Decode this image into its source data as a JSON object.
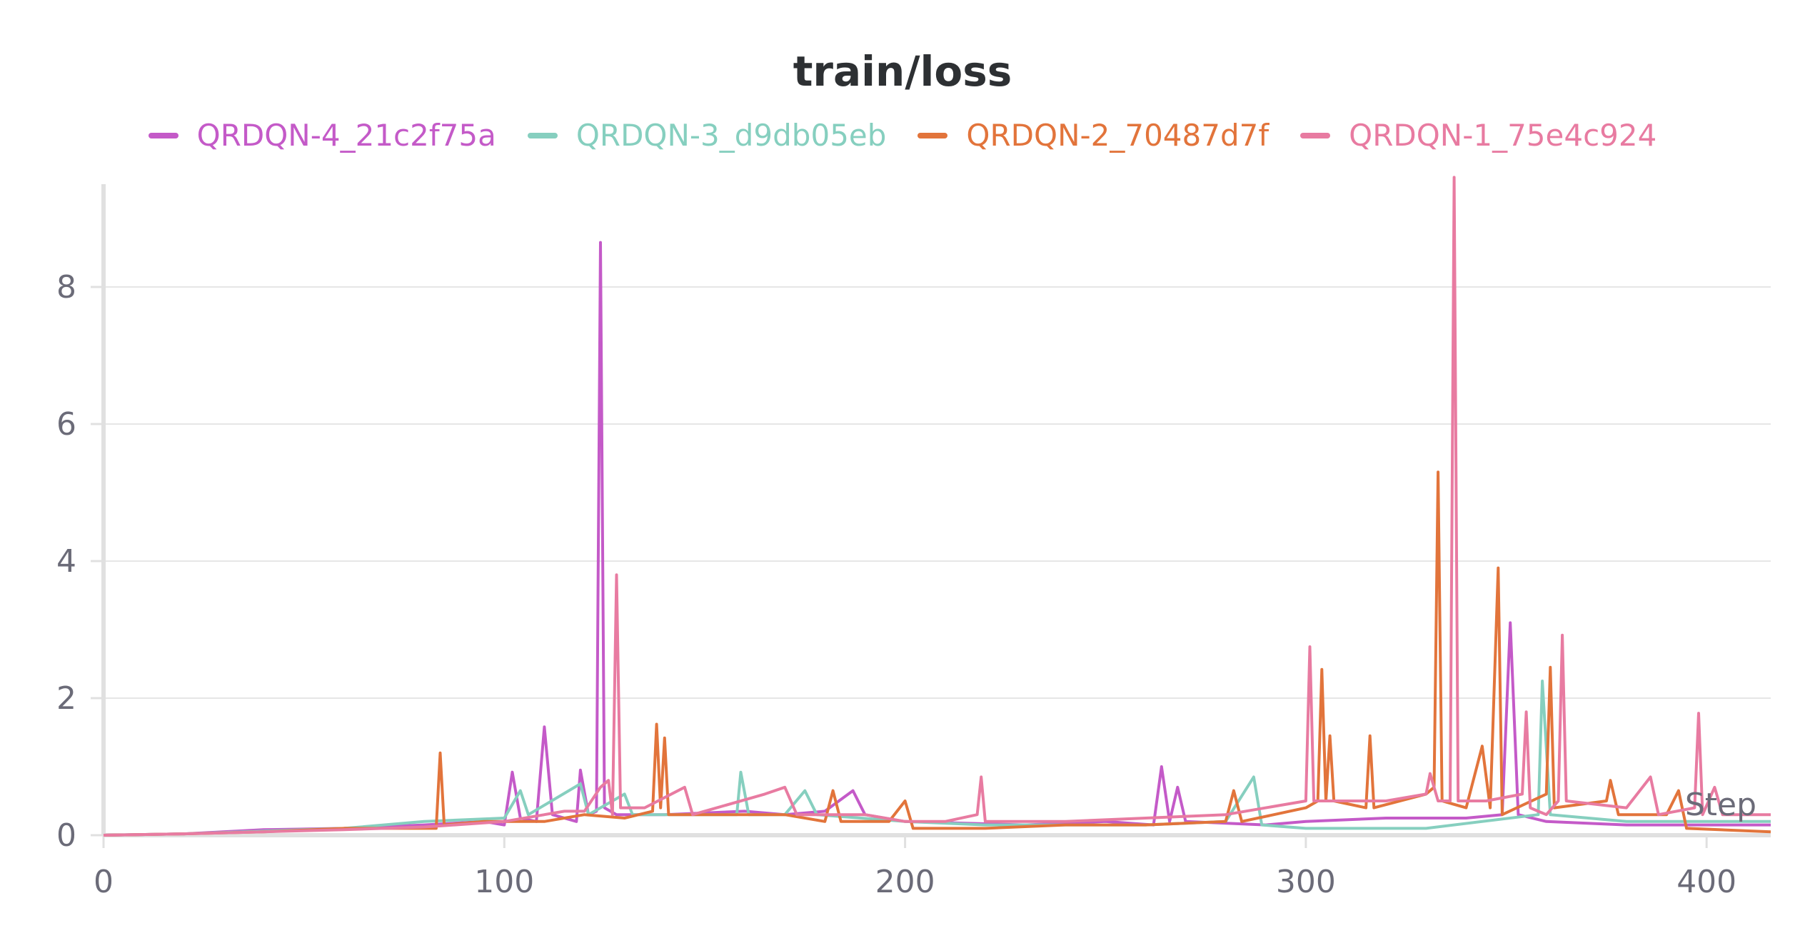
{
  "chart_data": {
    "type": "line",
    "title": "train/loss",
    "xlabel": "Step",
    "ylabel": "",
    "xlim": [
      0,
      416
    ],
    "ylim": [
      0,
      9.5
    ],
    "x_ticks": [
      0,
      100,
      200,
      300,
      400
    ],
    "y_ticks": [
      0,
      2,
      4,
      6,
      8
    ],
    "grid": true,
    "legend_position": "top-center",
    "series": [
      {
        "name": "QRDQN-4_21c2f75a",
        "color": "#c45ac8",
        "points": [
          [
            0,
            0
          ],
          [
            20,
            0.02
          ],
          [
            40,
            0.08
          ],
          [
            60,
            0.1
          ],
          [
            80,
            0.15
          ],
          [
            95,
            0.2
          ],
          [
            100,
            0.15
          ],
          [
            102,
            0.92
          ],
          [
            104,
            0.25
          ],
          [
            108,
            0.2
          ],
          [
            110,
            1.58
          ],
          [
            112,
            0.3
          ],
          [
            118,
            0.2
          ],
          [
            119,
            0.95
          ],
          [
            121,
            0.3
          ],
          [
            123,
            0.35
          ],
          [
            124,
            8.65
          ],
          [
            125,
            0.4
          ],
          [
            128,
            0.3
          ],
          [
            140,
            0.3
          ],
          [
            160,
            0.35
          ],
          [
            170,
            0.3
          ],
          [
            180,
            0.35
          ],
          [
            187,
            0.65
          ],
          [
            190,
            0.3
          ],
          [
            200,
            0.2
          ],
          [
            230,
            0.15
          ],
          [
            250,
            0.2
          ],
          [
            262,
            0.15
          ],
          [
            264,
            1.0
          ],
          [
            266,
            0.2
          ],
          [
            268,
            0.7
          ],
          [
            270,
            0.2
          ],
          [
            290,
            0.15
          ],
          [
            300,
            0.2
          ],
          [
            320,
            0.25
          ],
          [
            340,
            0.25
          ],
          [
            349,
            0.3
          ],
          [
            351,
            3.1
          ],
          [
            353,
            0.3
          ],
          [
            360,
            0.2
          ],
          [
            380,
            0.15
          ],
          [
            400,
            0.15
          ],
          [
            416,
            0.15
          ]
        ]
      },
      {
        "name": "QRDQN-3_d9db05eb",
        "color": "#86cfbf",
        "points": [
          [
            0,
            0
          ],
          [
            20,
            0.02
          ],
          [
            40,
            0.06
          ],
          [
            60,
            0.1
          ],
          [
            80,
            0.2
          ],
          [
            100,
            0.25
          ],
          [
            104,
            0.65
          ],
          [
            106,
            0.3
          ],
          [
            119,
            0.75
          ],
          [
            121,
            0.3
          ],
          [
            130,
            0.6
          ],
          [
            132,
            0.3
          ],
          [
            158,
            0.3
          ],
          [
            159,
            0.92
          ],
          [
            161,
            0.3
          ],
          [
            170,
            0.3
          ],
          [
            175,
            0.65
          ],
          [
            178,
            0.3
          ],
          [
            200,
            0.2
          ],
          [
            220,
            0.15
          ],
          [
            260,
            0.15
          ],
          [
            280,
            0.2
          ],
          [
            287,
            0.85
          ],
          [
            289,
            0.15
          ],
          [
            300,
            0.1
          ],
          [
            330,
            0.1
          ],
          [
            358,
            0.3
          ],
          [
            359,
            2.25
          ],
          [
            361,
            0.3
          ],
          [
            380,
            0.2
          ],
          [
            400,
            0.2
          ],
          [
            416,
            0.2
          ]
        ]
      },
      {
        "name": "QRDQN-2_70487d7f",
        "color": "#e2743b",
        "points": [
          [
            0,
            0
          ],
          [
            20,
            0.02
          ],
          [
            40,
            0.05
          ],
          [
            60,
            0.1
          ],
          [
            80,
            0.1
          ],
          [
            83,
            0.1
          ],
          [
            84,
            1.2
          ],
          [
            85,
            0.15
          ],
          [
            95,
            0.2
          ],
          [
            110,
            0.2
          ],
          [
            120,
            0.3
          ],
          [
            130,
            0.25
          ],
          [
            137,
            0.35
          ],
          [
            138,
            1.62
          ],
          [
            139,
            0.4
          ],
          [
            140,
            1.42
          ],
          [
            141,
            0.3
          ],
          [
            160,
            0.3
          ],
          [
            170,
            0.3
          ],
          [
            180,
            0.2
          ],
          [
            182,
            0.65
          ],
          [
            184,
            0.2
          ],
          [
            196,
            0.2
          ],
          [
            200,
            0.5
          ],
          [
            202,
            0.1
          ],
          [
            220,
            0.1
          ],
          [
            240,
            0.15
          ],
          [
            260,
            0.15
          ],
          [
            280,
            0.2
          ],
          [
            282,
            0.65
          ],
          [
            284,
            0.2
          ],
          [
            300,
            0.4
          ],
          [
            303,
            0.5
          ],
          [
            304,
            2.42
          ],
          [
            305,
            0.5
          ],
          [
            306,
            1.45
          ],
          [
            307,
            0.5
          ],
          [
            315,
            0.4
          ],
          [
            316,
            1.45
          ],
          [
            317,
            0.4
          ],
          [
            330,
            0.6
          ],
          [
            332,
            0.7
          ],
          [
            333,
            5.3
          ],
          [
            334,
            0.5
          ],
          [
            340,
            0.4
          ],
          [
            344,
            1.3
          ],
          [
            346,
            0.4
          ],
          [
            348,
            3.9
          ],
          [
            349,
            0.3
          ],
          [
            360,
            0.6
          ],
          [
            361,
            2.45
          ],
          [
            362,
            0.4
          ],
          [
            375,
            0.5
          ],
          [
            376,
            0.8
          ],
          [
            378,
            0.3
          ],
          [
            390,
            0.3
          ],
          [
            393,
            0.65
          ],
          [
            395,
            0.1
          ],
          [
            416,
            0.05
          ]
        ]
      },
      {
        "name": "QRDQN-1_75e4c924",
        "color": "#e87ba1",
        "points": [
          [
            0,
            0
          ],
          [
            20,
            0.02
          ],
          [
            40,
            0.05
          ],
          [
            60,
            0.08
          ],
          [
            80,
            0.12
          ],
          [
            100,
            0.2
          ],
          [
            115,
            0.35
          ],
          [
            120,
            0.35
          ],
          [
            124,
            0.7
          ],
          [
            126,
            0.8
          ],
          [
            127,
            0.3
          ],
          [
            128,
            3.8
          ],
          [
            129,
            0.4
          ],
          [
            135,
            0.4
          ],
          [
            145,
            0.7
          ],
          [
            147,
            0.3
          ],
          [
            165,
            0.6
          ],
          [
            170,
            0.7
          ],
          [
            173,
            0.3
          ],
          [
            180,
            0.3
          ],
          [
            190,
            0.3
          ],
          [
            200,
            0.2
          ],
          [
            210,
            0.2
          ],
          [
            218,
            0.3
          ],
          [
            219,
            0.85
          ],
          [
            220,
            0.2
          ],
          [
            240,
            0.2
          ],
          [
            260,
            0.25
          ],
          [
            280,
            0.3
          ],
          [
            300,
            0.5
          ],
          [
            301,
            2.75
          ],
          [
            302,
            0.5
          ],
          [
            310,
            0.5
          ],
          [
            320,
            0.5
          ],
          [
            330,
            0.6
          ],
          [
            331,
            0.9
          ],
          [
            333,
            0.5
          ],
          [
            336,
            0.5
          ],
          [
            337,
            9.6
          ],
          [
            338,
            0.5
          ],
          [
            345,
            0.5
          ],
          [
            354,
            0.6
          ],
          [
            355,
            1.8
          ],
          [
            356,
            0.4
          ],
          [
            360,
            0.3
          ],
          [
            363,
            0.5
          ],
          [
            364,
            2.92
          ],
          [
            365,
            0.5
          ],
          [
            380,
            0.4
          ],
          [
            386,
            0.85
          ],
          [
            388,
            0.3
          ],
          [
            397,
            0.4
          ],
          [
            398,
            1.78
          ],
          [
            399,
            0.3
          ],
          [
            402,
            0.7
          ],
          [
            404,
            0.3
          ],
          [
            416,
            0.3
          ]
        ]
      }
    ]
  }
}
